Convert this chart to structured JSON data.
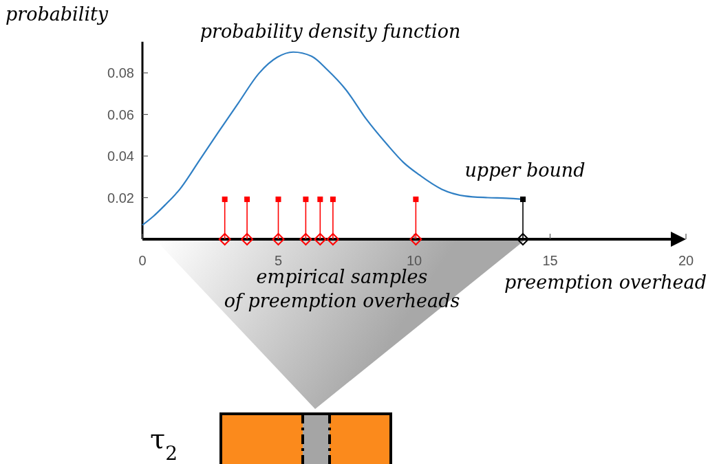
{
  "chart_data": {
    "type": "line",
    "xlabel": "preemption overhead",
    "ylabel": "probability",
    "xlim": [
      0,
      20
    ],
    "ylim": [
      0,
      0.095
    ],
    "xticks": [
      0,
      5,
      10,
      15,
      20
    ],
    "yticks": [
      {
        "value": 0,
        "label": null
      },
      0.02,
      0.04,
      0.06,
      0.08
    ],
    "grid": false,
    "annotations": [
      "τ$_{2}$",
      "empirical samples\nof preemption overheads"
    ],
    "series": [
      {
        "name": "probability density function",
        "color": "#2f7fc4",
        "x": [
          0,
          0.4,
          0.83,
          1.38,
          2.1,
          2.77,
          3.53,
          4.29,
          4.96,
          5.55,
          6.22,
          6.81,
          7.48,
          8.24,
          9.0,
          9.6,
          10.18,
          11.02,
          11.86,
          12.7,
          13.4,
          14
        ],
        "values": [
          0.0068,
          0.011,
          0.0164,
          0.0241,
          0.038,
          0.051,
          0.0655,
          0.0798,
          0.0875,
          0.09,
          0.088,
          0.0814,
          0.072,
          0.0577,
          0.0456,
          0.037,
          0.031,
          0.024,
          0.0208,
          0.02,
          0.0197,
          0.0192
        ]
      },
      {
        "type": "lollipop",
        "color": "#ff0000",
        "marker": "square",
        "x": [
          3.03,
          3.85,
          5.0,
          6.01,
          6.54,
          7.01,
          10.06
        ],
        "values": [
          0.0192,
          0.0192,
          0.0192,
          0.0192,
          0.0192,
          0.0192,
          0.0192
        ]
      },
      {
        "name": "upper bound",
        "type": "lollipop",
        "color": "#000000",
        "marker": "square",
        "x": [
          14
        ],
        "values": [
          0.0192
        ]
      },
      {
        "type": "scatter",
        "color": "#ff0000",
        "marker": "diamond",
        "x": [
          3.03,
          3.85,
          5.0,
          6.01,
          6.54,
          7.01,
          10.06
        ],
        "values": [
          0,
          0,
          0,
          0,
          0,
          0,
          0
        ]
      },
      {
        "type": "scatter",
        "color": "#000000",
        "marker": "diamond",
        "x": [
          14
        ],
        "values": [
          0
        ]
      }
    ]
  }
}
